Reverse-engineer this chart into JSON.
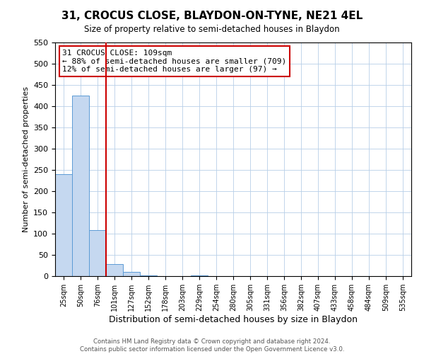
{
  "title": "31, CROCUS CLOSE, BLAYDON-ON-TYNE, NE21 4EL",
  "subtitle": "Size of property relative to semi-detached houses in Blaydon",
  "xlabel": "Distribution of semi-detached houses by size in Blaydon",
  "ylabel": "Number of semi-detached properties",
  "bin_labels": [
    "25sqm",
    "50sqm",
    "76sqm",
    "101sqm",
    "127sqm",
    "152sqm",
    "178sqm",
    "203sqm",
    "229sqm",
    "254sqm",
    "280sqm",
    "305sqm",
    "331sqm",
    "356sqm",
    "382sqm",
    "407sqm",
    "433sqm",
    "458sqm",
    "484sqm",
    "509sqm",
    "535sqm"
  ],
  "bar_values": [
    240,
    425,
    108,
    29,
    10,
    2,
    0,
    0,
    2,
    0,
    0,
    0,
    0,
    0,
    0,
    0,
    0,
    0,
    0,
    0,
    0
  ],
  "bar_color": "#c5d8f0",
  "bar_edgecolor": "#5b9bd5",
  "property_line_bin": 3,
  "property_line_color": "#cc0000",
  "ylim": [
    0,
    550
  ],
  "yticks": [
    0,
    50,
    100,
    150,
    200,
    250,
    300,
    350,
    400,
    450,
    500,
    550
  ],
  "annotation_title": "31 CROCUS CLOSE: 109sqm",
  "annotation_line1": "← 88% of semi-detached houses are smaller (709)",
  "annotation_line2": "12% of semi-detached houses are larger (97) →",
  "annotation_box_color": "#ffffff",
  "annotation_box_edgecolor": "#cc0000",
  "footer1": "Contains HM Land Registry data © Crown copyright and database right 2024.",
  "footer2": "Contains public sector information licensed under the Open Government Licence v3.0."
}
